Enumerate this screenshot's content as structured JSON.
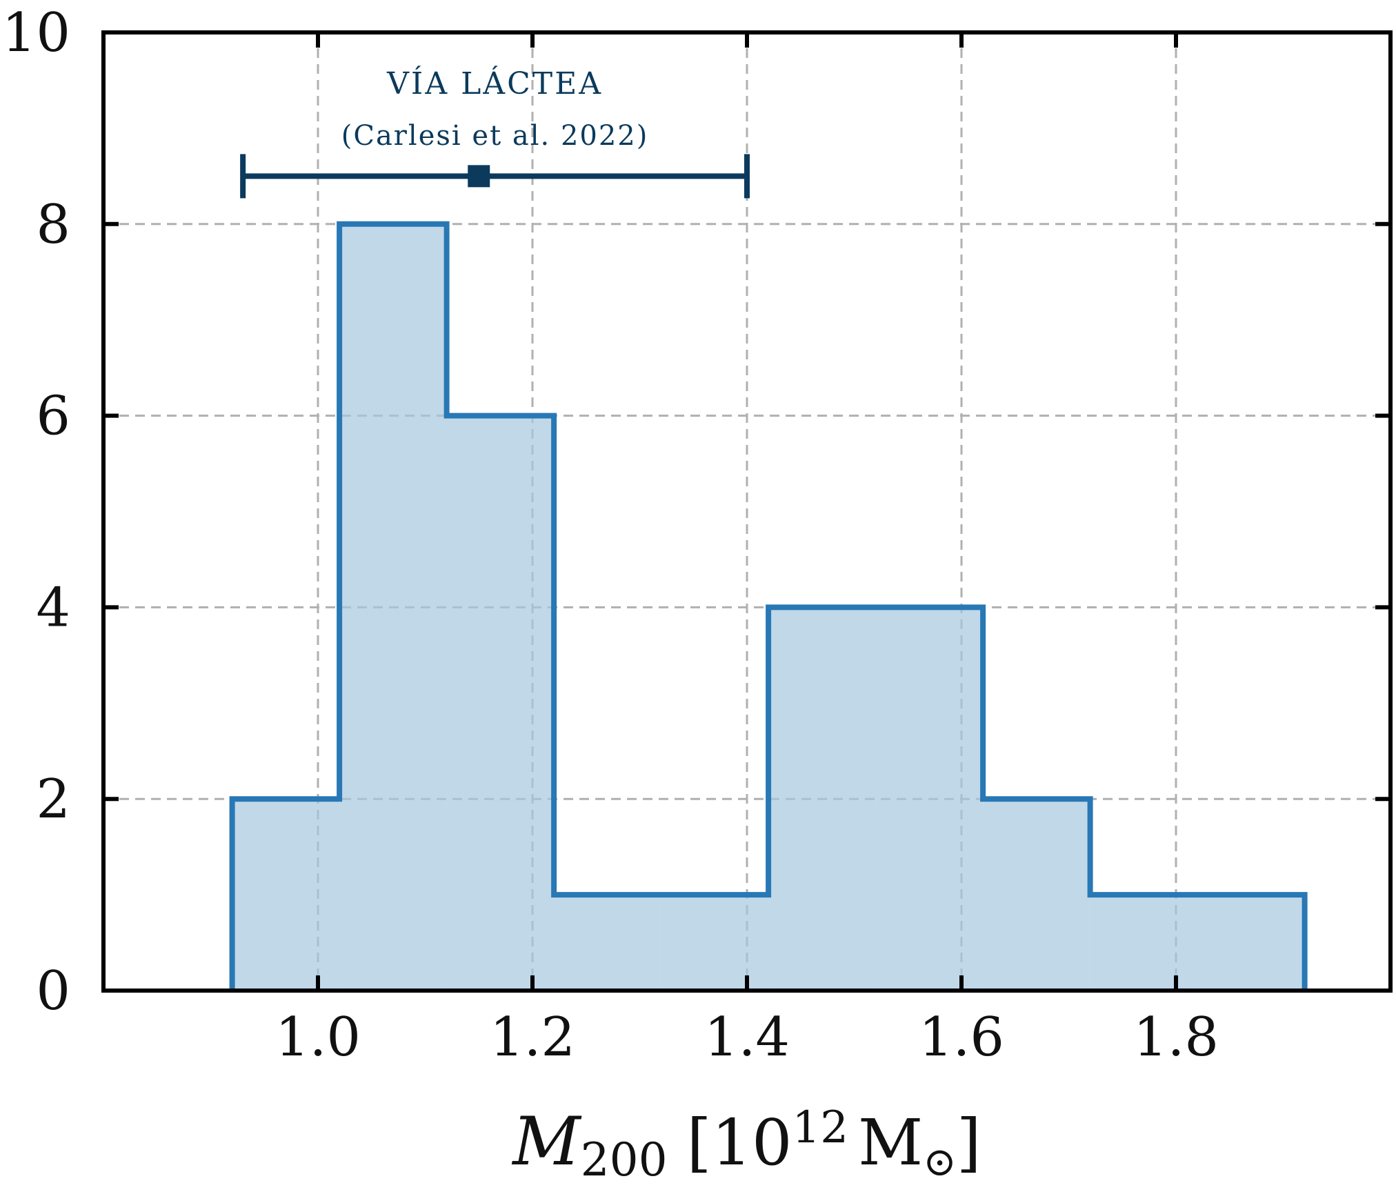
{
  "chart_data": {
    "type": "bar",
    "subtype": "histogram-step",
    "bin_edges": [
      0.92,
      1.02,
      1.12,
      1.22,
      1.32,
      1.42,
      1.52,
      1.62,
      1.72,
      1.82,
      1.92
    ],
    "counts": [
      2,
      8,
      6,
      1,
      1,
      4,
      4,
      2,
      1,
      1
    ],
    "xlim": [
      0.8,
      2.0
    ],
    "ylim": [
      0,
      10
    ],
    "x_ticks": [
      "1.0",
      "1.2",
      "1.4",
      "1.6",
      "1.8"
    ],
    "x_tick_values": [
      1.0,
      1.2,
      1.4,
      1.6,
      1.8
    ],
    "y_ticks": [
      "0",
      "2",
      "4",
      "6",
      "8",
      "10"
    ],
    "y_tick_values": [
      0,
      2,
      4,
      6,
      8,
      10
    ],
    "xlabel": {
      "symbol": "M",
      "subscript": "200",
      "open": "[10",
      "superscript": "12",
      "unit": "M",
      "sun": "⊙",
      "close": "]"
    },
    "ylabel": "",
    "grid": true,
    "colors": {
      "histogram_edge": "#2878b5",
      "histogram_fill": "#a6c8e0",
      "errorbar": "#0b3a5c",
      "grid": "#b0b0b0",
      "axes": "#000000"
    },
    "annotation": {
      "title": "VÍA LÁCTEA",
      "citation": "(Carlesi et al. 2022)",
      "value": 1.15,
      "lower": 0.93,
      "upper": 1.4,
      "y": 8.5
    }
  }
}
